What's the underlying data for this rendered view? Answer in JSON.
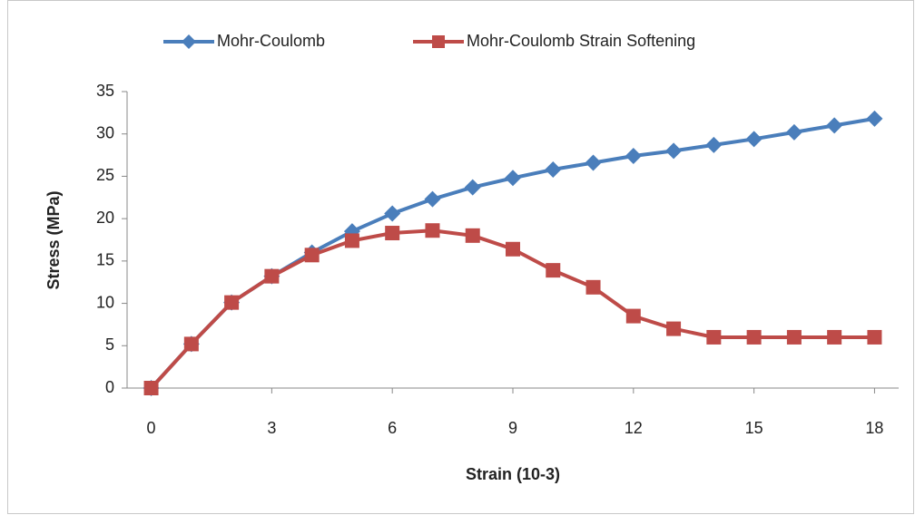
{
  "chart_data": {
    "type": "line",
    "x": [
      0,
      1,
      2,
      3,
      4,
      5,
      6,
      7,
      8,
      9,
      10,
      11,
      12,
      13,
      14,
      15,
      16,
      17,
      18
    ],
    "series": [
      {
        "name": "Mohr-Coulomb",
        "color": "#4a7ebb",
        "marker": "diamond",
        "values": [
          0,
          5.2,
          10.1,
          13.2,
          16.0,
          18.5,
          20.6,
          22.3,
          23.7,
          24.8,
          25.8,
          26.6,
          27.4,
          28.0,
          28.7,
          29.4,
          30.2,
          31.0,
          31.8
        ]
      },
      {
        "name": "Mohr-Coulomb Strain Softening",
        "color": "#be4b48",
        "marker": "square",
        "values": [
          0,
          5.2,
          10.1,
          13.2,
          15.7,
          17.4,
          18.3,
          18.6,
          18.0,
          16.4,
          13.9,
          11.9,
          8.5,
          7.0,
          6.0,
          6.0,
          6.0,
          6.0,
          6.0
        ]
      }
    ],
    "xlabel": "Strain (10-3)",
    "ylabel": "Stress (MPa)",
    "xlim": [
      -0.6,
      18.6
    ],
    "xticks": [
      0,
      3,
      6,
      9,
      12,
      15,
      18
    ],
    "ylim": [
      0,
      35
    ],
    "yticks": [
      0,
      5,
      10,
      15,
      20,
      25,
      30,
      35
    ],
    "legend": "top",
    "grid": false
  }
}
